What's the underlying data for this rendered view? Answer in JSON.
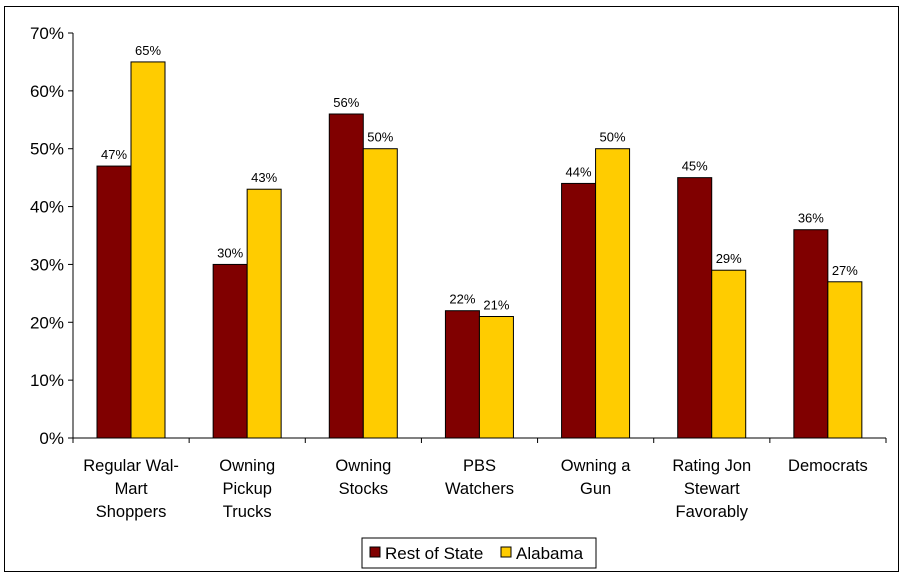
{
  "chart_data": {
    "type": "bar",
    "title": "",
    "xlabel": "",
    "ylabel": "",
    "ylim": [
      0,
      70
    ],
    "y_ticks": [
      "0%",
      "10%",
      "20%",
      "30%",
      "40%",
      "50%",
      "60%",
      "70%"
    ],
    "y_tick_values": [
      0,
      10,
      20,
      30,
      40,
      50,
      60,
      70
    ],
    "categories": [
      [
        "Regular Wal-",
        "Mart",
        "Shoppers"
      ],
      [
        "Owning",
        "Pickup",
        "Trucks"
      ],
      [
        "Owning",
        "Stocks"
      ],
      [
        "PBS",
        "Watchers"
      ],
      [
        "Owning a",
        "Gun"
      ],
      [
        "Rating Jon",
        "Stewart",
        "Favorably"
      ],
      [
        "Democrats"
      ]
    ],
    "series": [
      {
        "name": "Rest of State",
        "color": "#800000",
        "values": [
          47,
          30,
          56,
          22,
          44,
          45,
          36
        ],
        "labels": [
          "47%",
          "30%",
          "56%",
          "22%",
          "44%",
          "45%",
          "36%"
        ]
      },
      {
        "name": "Alabama",
        "color": "#FFCC00",
        "values": [
          65,
          43,
          50,
          21,
          50,
          29,
          27
        ],
        "labels": [
          "65%",
          "43%",
          "50%",
          "21%",
          "50%",
          "29%",
          "27%"
        ]
      }
    ],
    "legend": {
      "position": "bottom-center"
    },
    "grid": false
  }
}
